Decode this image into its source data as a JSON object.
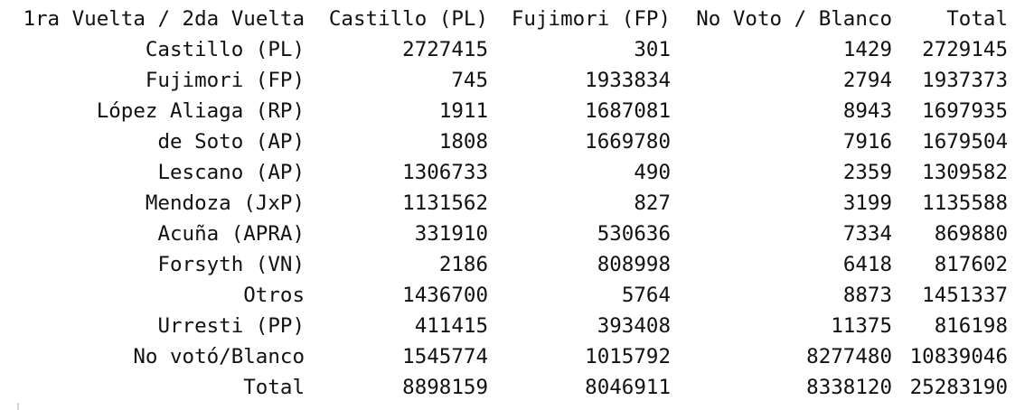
{
  "table": {
    "corner_header": "1ra Vuelta / 2da Vuelta",
    "columns": [
      "Castillo (PL)",
      "Fujimori (FP)",
      "No Voto / Blanco",
      "Total"
    ],
    "rows": [
      {
        "label": "Castillo (PL)",
        "values": [
          "2727415",
          "301",
          "1429",
          "2729145"
        ]
      },
      {
        "label": "Fujimori (FP)",
        "values": [
          "745",
          "1933834",
          "2794",
          "1937373"
        ]
      },
      {
        "label": "López Aliaga (RP)",
        "values": [
          "1911",
          "1687081",
          "8943",
          "1697935"
        ]
      },
      {
        "label": "de Soto (AP)",
        "values": [
          "1808",
          "1669780",
          "7916",
          "1679504"
        ]
      },
      {
        "label": "Lescano (AP)",
        "values": [
          "1306733",
          "490",
          "2359",
          "1309582"
        ]
      },
      {
        "label": "Mendoza (JxP)",
        "values": [
          "1131562",
          "827",
          "3199",
          "1135588"
        ]
      },
      {
        "label": "Acuña (APRA)",
        "values": [
          "331910",
          "530636",
          "7334",
          "869880"
        ]
      },
      {
        "label": "Forsyth (VN)",
        "values": [
          "2186",
          "808998",
          "6418",
          "817602"
        ]
      },
      {
        "label": "Otros",
        "values": [
          "1436700",
          "5764",
          "8873",
          "1451337"
        ]
      },
      {
        "label": "Urresti (PP)",
        "values": [
          "411415",
          "393408",
          "11375",
          "816198"
        ]
      },
      {
        "label": "No votó/Blanco",
        "values": [
          "1545774",
          "1015792",
          "8277480",
          "10839046"
        ]
      },
      {
        "label": "Total",
        "values": [
          "8898159",
          "8046911",
          "8338120",
          "25283190"
        ]
      }
    ]
  }
}
